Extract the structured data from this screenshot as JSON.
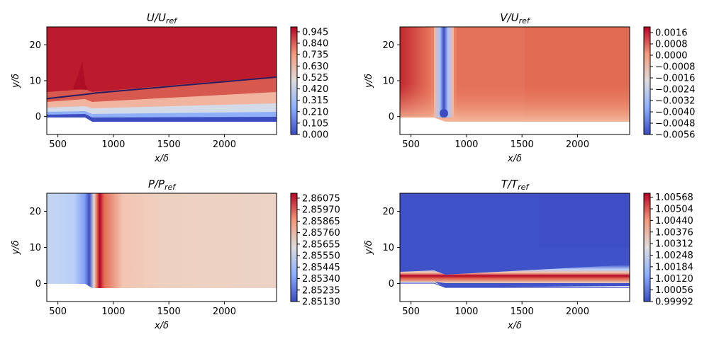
{
  "chart_data": [
    {
      "type": "heatmap",
      "title": "U/U",
      "title_sub": "ref",
      "xlabel": "x/δ",
      "ylabel": "y/δ",
      "xlim": [
        400,
        2470
      ],
      "ylim": [
        -5,
        25
      ],
      "xticks": [
        500,
        1000,
        1500,
        2000
      ],
      "yticks": [
        0,
        10,
        20
      ],
      "colormap": "coolwarm",
      "colorbar_range": [
        0.0,
        0.99
      ],
      "colorbar_ticks": [
        "0.945",
        "0.840",
        "0.735",
        "0.630",
        "0.525",
        "0.420",
        "0.315",
        "0.210",
        "0.105",
        "0.000"
      ],
      "contour_line": {
        "x": [
          400,
          750,
          850,
          2470
        ],
        "y": [
          5,
          6.2,
          6.6,
          11
        ]
      }
    },
    {
      "type": "heatmap",
      "title": "V/U",
      "title_sub": "ref",
      "xlabel": "x/δ",
      "ylabel": "y/δ",
      "xlim": [
        400,
        2470
      ],
      "ylim": [
        -5,
        25
      ],
      "xticks": [
        500,
        1000,
        1500,
        2000
      ],
      "yticks": [
        0,
        10,
        20
      ],
      "colormap": "coolwarm",
      "colorbar_range": [
        -0.0056,
        0.002
      ],
      "colorbar_ticks": [
        "0.0016",
        "0.0008",
        "0.0000",
        "−0.0008",
        "−0.0016",
        "−0.0024",
        "−0.0032",
        "−0.0040",
        "−0.0048",
        "−0.0056"
      ]
    },
    {
      "type": "heatmap",
      "title": "P/P",
      "title_sub": "ref",
      "xlabel": "x/δ",
      "ylabel": "y/δ",
      "xlim": [
        400,
        2470
      ],
      "ylim": [
        -5,
        25
      ],
      "xticks": [
        500,
        1000,
        1500,
        2000
      ],
      "yticks": [
        0,
        10,
        20
      ],
      "colormap": "coolwarm",
      "colorbar_range": [
        2.8513,
        2.8612
      ],
      "colorbar_ticks": [
        "2.86075",
        "2.85970",
        "2.85865",
        "2.85760",
        "2.85655",
        "2.85550",
        "2.85445",
        "2.85340",
        "2.85235",
        "2.85130"
      ]
    },
    {
      "type": "heatmap",
      "title": "T/T",
      "title_sub": "ref",
      "xlabel": "x/δ",
      "ylabel": "y/δ",
      "xlim": [
        400,
        2470
      ],
      "ylim": [
        -5,
        25
      ],
      "xticks": [
        500,
        1000,
        1500,
        2000
      ],
      "yticks": [
        0,
        10,
        20
      ],
      "colormap": "coolwarm",
      "colorbar_range": [
        0.99992,
        1.0059
      ],
      "colorbar_ticks": [
        "1.00568",
        "1.00504",
        "1.00440",
        "1.00376",
        "1.00312",
        "1.00248",
        "1.00184",
        "1.00120",
        "1.00056",
        "0.99992"
      ]
    }
  ]
}
